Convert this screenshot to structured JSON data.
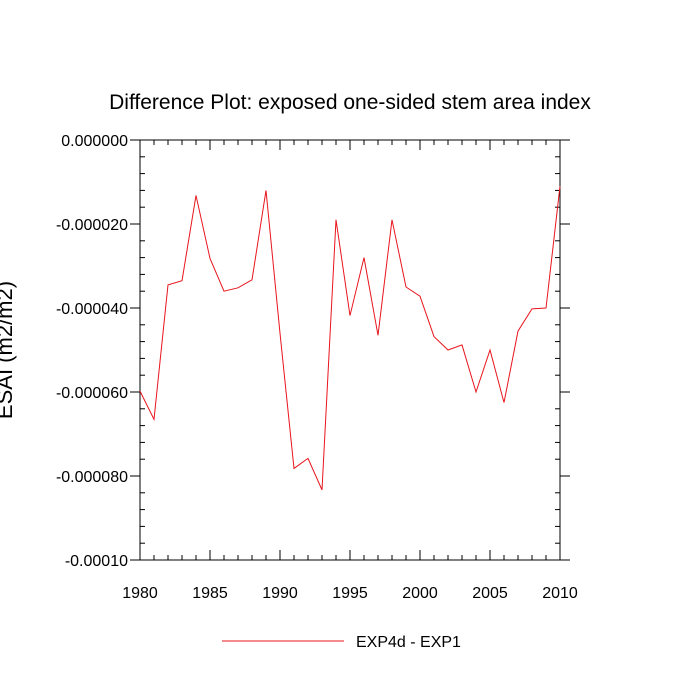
{
  "chart_data": {
    "type": "line",
    "title": "Difference Plot: exposed one-sided stem area index",
    "xlabel": "",
    "ylabel": "ESAI (m2/m2)",
    "xlim": [
      1980,
      2010
    ],
    "ylim": [
      -0.0001,
      0.0
    ],
    "x_ticks": [
      1980,
      1985,
      1990,
      1995,
      2000,
      2005,
      2010
    ],
    "x_tick_labels": [
      "1980",
      "1985",
      "1990",
      "1995",
      "2000",
      "2005",
      "2010"
    ],
    "y_ticks": [
      0.0,
      -2e-05,
      -4e-05,
      -6e-05,
      -8e-05,
      -0.0001
    ],
    "y_tick_labels": [
      "0.000000",
      "-0.000020",
      "-0.000040",
      "-0.000060",
      "-0.000080",
      "-0.00010"
    ],
    "grid": false,
    "legend_position": "bottom-center",
    "x": [
      1980,
      1981,
      1982,
      1983,
      1984,
      1985,
      1986,
      1987,
      1988,
      1989,
      1990,
      1991,
      1992,
      1993,
      1994,
      1995,
      1996,
      1997,
      1998,
      1999,
      2000,
      2001,
      2002,
      2003,
      2004,
      2005,
      2006,
      2007,
      2008,
      2009,
      2010
    ],
    "series": [
      {
        "name": "EXP4d - EXP1",
        "color": "#e8141c",
        "values": [
          -5.98e-05,
          -6.65e-05,
          -3.45e-05,
          -3.35e-05,
          -1.32e-05,
          -2.82e-05,
          -3.6e-05,
          -3.52e-05,
          -3.33e-05,
          -1.2e-05,
          -4.6e-05,
          -7.82e-05,
          -7.58e-05,
          -8.33e-05,
          -1.9e-05,
          -4.18e-05,
          -2.8e-05,
          -4.65e-05,
          -1.9e-05,
          -3.5e-05,
          -3.72e-05,
          -4.68e-05,
          -5e-05,
          -4.88e-05,
          -6e-05,
          -5e-05,
          -6.25e-05,
          -4.55e-05,
          -4.02e-05,
          -4e-05,
          -1.1e-05
        ]
      }
    ]
  }
}
